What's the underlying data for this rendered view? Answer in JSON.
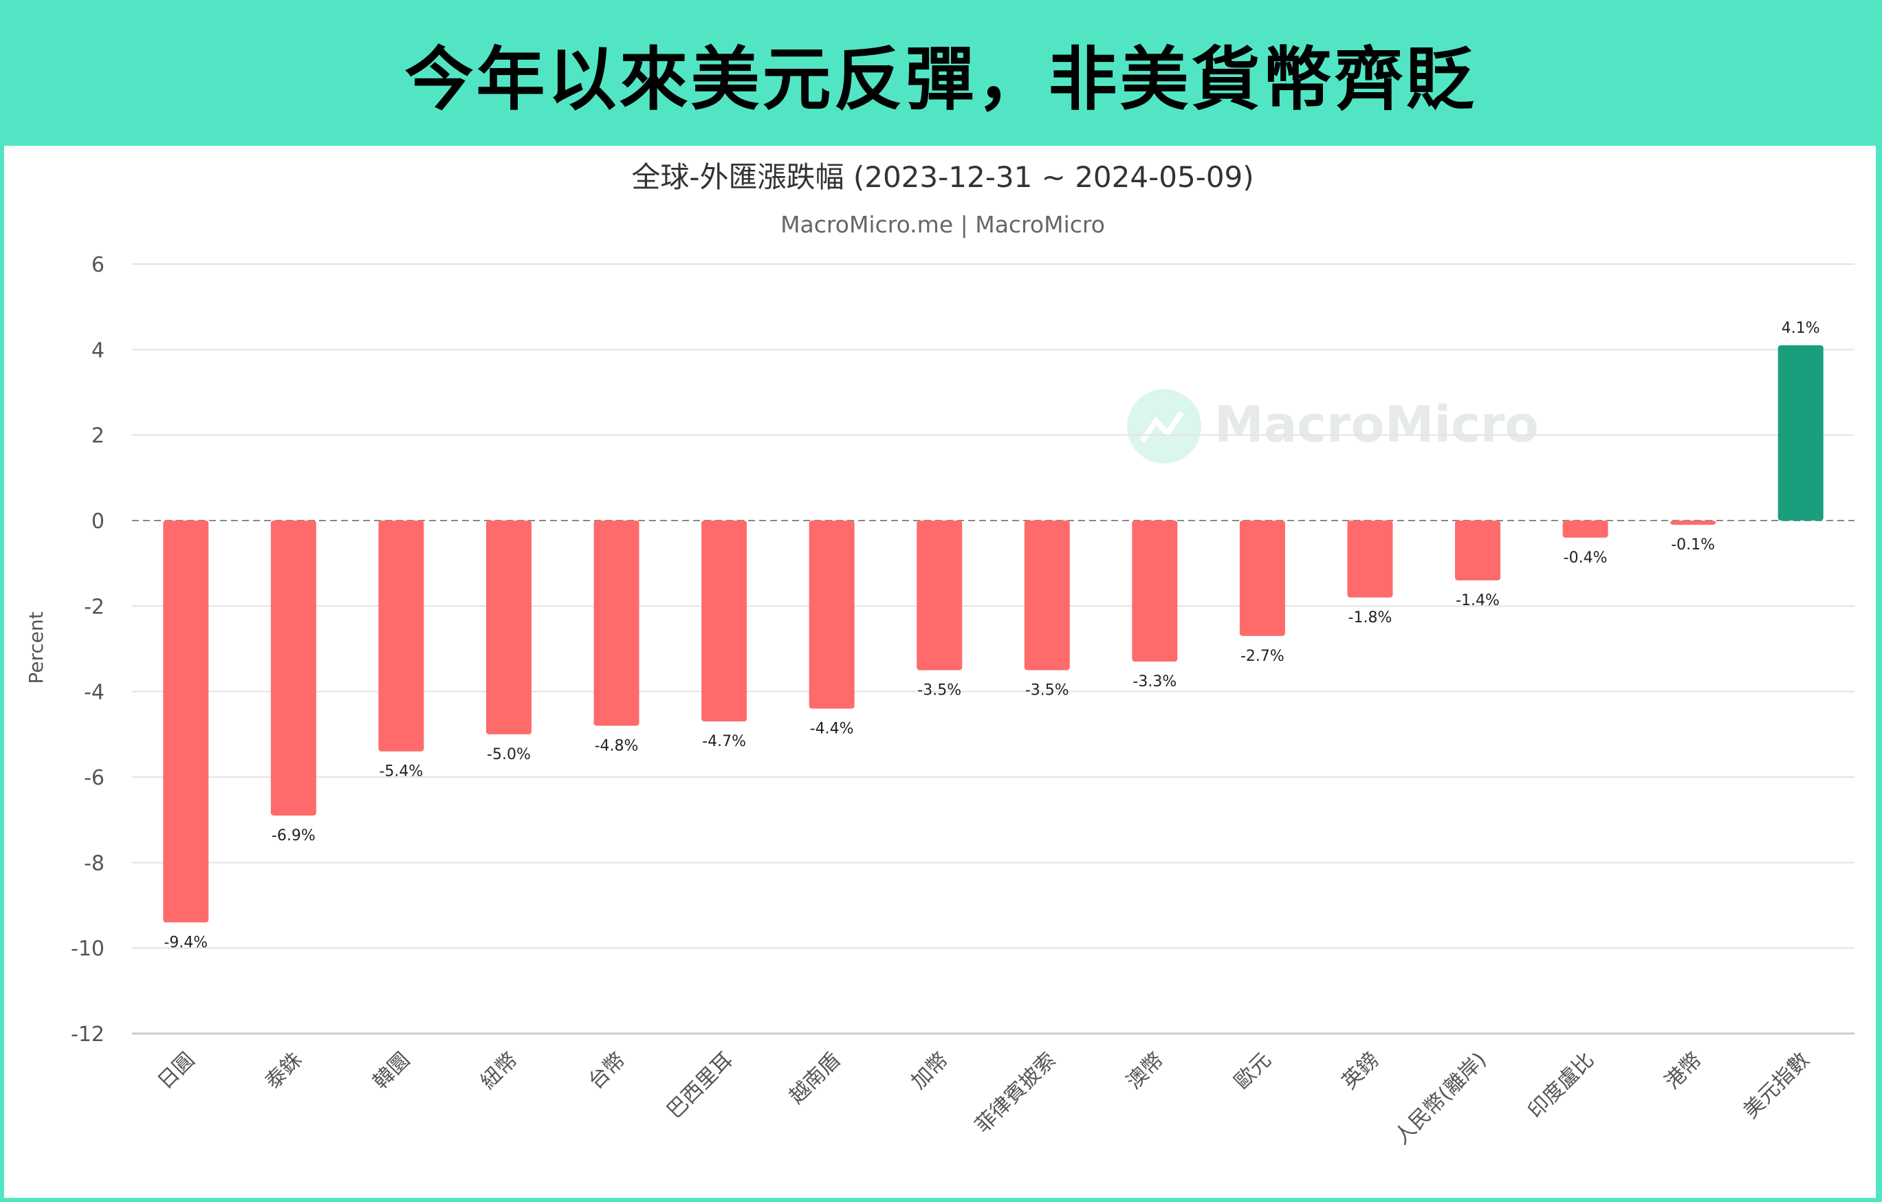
{
  "header": {
    "title": "今年以來美元反彈，非美貨幣齊貶"
  },
  "colors": {
    "header_bg": "#52e5c4",
    "negative": "#ff6b6b",
    "positive": "#1a9e7e",
    "watermark": "#d8f5ee"
  },
  "watermark": {
    "text": "MacroMicro",
    "icon": "macromicro-logo-icon"
  },
  "chart_data": {
    "type": "bar",
    "title": "全球-外匯漲跌幅 (2023-12-31 ~ 2024-05-09)",
    "subtitle": "MacroMicro.me | MacroMicro",
    "ylabel": "Percent",
    "xlabel": "",
    "ylim": [
      -12,
      6
    ],
    "yticks": [
      6,
      4,
      2,
      0,
      -2,
      -4,
      -6,
      -8,
      -10,
      -12
    ],
    "grid": true,
    "zero_line": "dashed",
    "categories": [
      "日圓",
      "泰銖",
      "韓圜",
      "紐幣",
      "台幣",
      "巴西里耳",
      "越南盾",
      "加幣",
      "菲律賓披索",
      "澳幣",
      "歐元",
      "英鎊",
      "人民幣(離岸)",
      "印度盧比",
      "港幣",
      "美元指數"
    ],
    "values": [
      -9.4,
      -6.9,
      -5.4,
      -5.0,
      -4.8,
      -4.7,
      -4.4,
      -3.5,
      -3.5,
      -3.3,
      -2.7,
      -1.8,
      -1.4,
      -0.4,
      -0.1,
      4.1
    ],
    "data_labels": [
      "-9.4%",
      "-6.9%",
      "-5.4%",
      "-5.0%",
      "-4.8%",
      "-4.7%",
      "-4.4%",
      "-3.5%",
      "-3.5%",
      "-3.3%",
      "-2.7%",
      "-1.8%",
      "-1.4%",
      "-0.4%",
      "-0.1%",
      "4.1%"
    ]
  }
}
